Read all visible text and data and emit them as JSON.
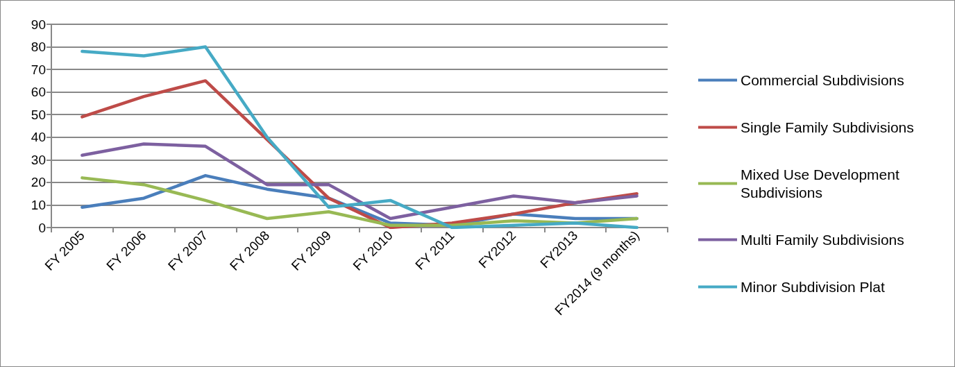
{
  "chart_data": {
    "type": "line",
    "categories": [
      "FY 2005",
      "FY 2006",
      "FY 2007",
      "FY 2008",
      "FY 2009",
      "FY 2010",
      "FY 2011",
      "FY2012",
      "FY2013",
      "FY2014 (9 months)"
    ],
    "series": [
      {
        "name": "Commercial Subdivisions",
        "color": "#4a7ebb",
        "values": [
          9,
          13,
          23,
          17,
          13,
          2,
          1,
          6,
          4,
          4
        ]
      },
      {
        "name": "Single Family Subdivisions",
        "color": "#be4b48",
        "values": [
          49,
          58,
          65,
          39,
          13,
          0,
          2,
          6,
          11,
          15
        ]
      },
      {
        "name": "Mixed Use Development Subdivisions",
        "color": "#98b954",
        "values": [
          22,
          19,
          12,
          4,
          7,
          1,
          1,
          3,
          2,
          4
        ]
      },
      {
        "name": "Multi Family Subdivisions",
        "color": "#7d60a0",
        "values": [
          32,
          37,
          36,
          19,
          19,
          4,
          9,
          14,
          11,
          14
        ]
      },
      {
        "name": "Minor Subdivision Plat",
        "color": "#46aac5",
        "values": [
          78,
          76,
          80,
          40,
          9,
          12,
          0,
          1,
          2,
          0
        ]
      }
    ],
    "ylim": [
      0,
      90
    ],
    "yticks": [
      0,
      10,
      20,
      30,
      40,
      50,
      60,
      70,
      80,
      90
    ],
    "grid": "y",
    "legend": "right",
    "marker": "none",
    "line_style": "solid"
  }
}
